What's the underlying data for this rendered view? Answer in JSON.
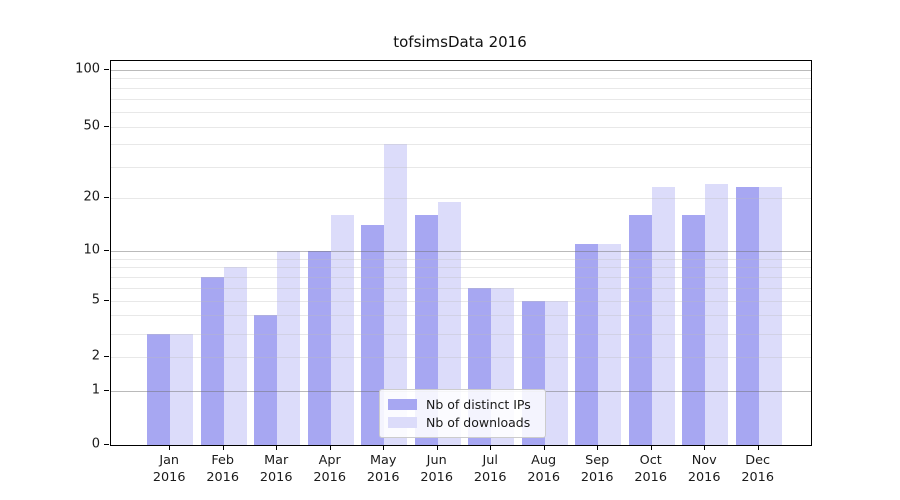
{
  "chart_data": {
    "type": "bar",
    "title": "tofsimsData 2016",
    "categories": [
      "Jan 2016",
      "Feb 2016",
      "Mar 2016",
      "Apr 2016",
      "May 2016",
      "Jun 2016",
      "Jul 2016",
      "Aug 2016",
      "Sep 2016",
      "Oct 2016",
      "Nov 2016",
      "Dec 2016"
    ],
    "series": [
      {
        "name": "Nb of distinct IPs",
        "color": "#a7a7f2",
        "values": [
          3,
          7,
          4,
          10,
          14,
          16,
          6,
          5,
          11,
          16,
          16,
          23
        ]
      },
      {
        "name": "Nb of downloads",
        "color": "#dcdcfa",
        "values": [
          3,
          8,
          10,
          16,
          40,
          19,
          6,
          5,
          11,
          23,
          24,
          23
        ]
      }
    ],
    "xlabel": "",
    "ylabel": "",
    "y_axis": {
      "scale": "log(1+x)",
      "tick_values": [
        0,
        1,
        2,
        5,
        10,
        20,
        50,
        100
      ],
      "major_grid_values": [
        1,
        10,
        100
      ],
      "minor_grid_values": [
        2,
        3,
        4,
        5,
        6,
        7,
        8,
        9,
        20,
        30,
        40,
        50,
        60,
        70,
        80,
        90
      ],
      "range": [
        0,
        115
      ]
    },
    "grid": true,
    "legend_position": "lower center",
    "colors": {
      "axis": "#000000",
      "major_grid": "#b9b9b9",
      "minor_grid": "#ececec",
      "legend_border": "#cccccc",
      "text": "#1a1a1a"
    }
  }
}
